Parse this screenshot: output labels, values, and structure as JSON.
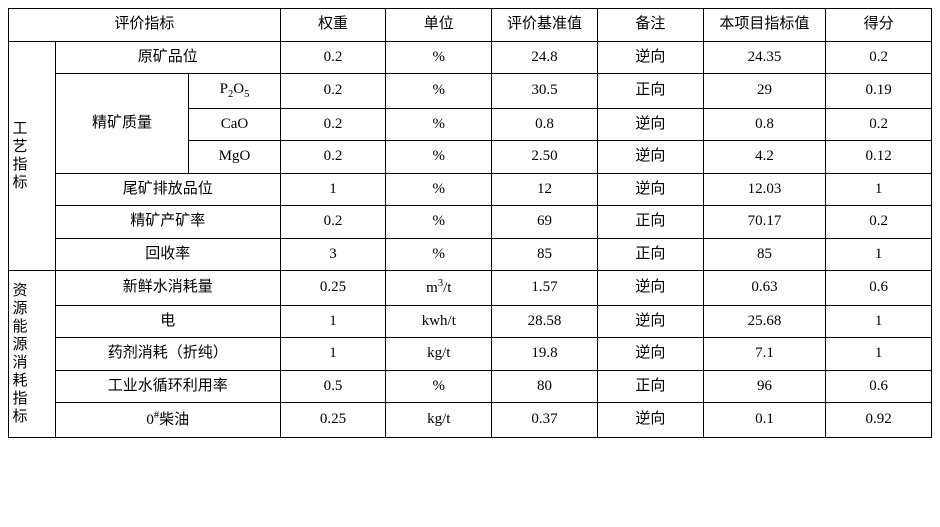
{
  "headers": {
    "indicator": "评价指标",
    "weight": "权重",
    "unit": "单位",
    "baseline": "评价基准值",
    "note": "备注",
    "projectValue": "本项目指标值",
    "score": "得分"
  },
  "categories": {
    "process": "工艺指标",
    "resource": "资源能源消耗指标"
  },
  "subLabels": {
    "oreGrade": "原矿品位",
    "concQuality": "精矿质量",
    "p2o5": "P",
    "p2o5_sub": "2",
    "p2o5_after": "O",
    "p2o5_sub2": "5",
    "cao": "CaO",
    "mgo": "MgO",
    "tailingsGrade": "尾矿排放品位",
    "concYield": "精矿产矿率",
    "recovery": "回收率",
    "freshWater": "新鲜水消耗量",
    "electricity": "电",
    "reagent": "药剂消耗（折纯）",
    "waterRecycle": "工业水循环利用率",
    "diesel_pre": "0",
    "diesel_sup": "#",
    "diesel_post": "柴油"
  },
  "units": {
    "pct": "%",
    "m3t_pre": "m",
    "m3t_sup": "3",
    "m3t_post": "/t",
    "kwht": "kwh/t",
    "kgt": "kg/t"
  },
  "notes": {
    "reverse": "逆向",
    "forward": "正向"
  },
  "rows": {
    "oreGrade": {
      "weight": "0.2",
      "baseline": "24.8",
      "proj": "24.35",
      "score": "0.2"
    },
    "p2o5": {
      "weight": "0.2",
      "baseline": "30.5",
      "proj": "29",
      "score": "0.19"
    },
    "cao": {
      "weight": "0.2",
      "baseline": "0.8",
      "proj": "0.8",
      "score": "0.2"
    },
    "mgo": {
      "weight": "0.2",
      "baseline": "2.50",
      "proj": "4.2",
      "score": "0.12"
    },
    "tailings": {
      "weight": "1",
      "baseline": "12",
      "proj": "12.03",
      "score": "1"
    },
    "concYield": {
      "weight": "0.2",
      "baseline": "69",
      "proj": "70.17",
      "score": "0.2"
    },
    "recovery": {
      "weight": "3",
      "baseline": "85",
      "proj": "85",
      "score": "1"
    },
    "freshWater": {
      "weight": "0.25",
      "baseline": "1.57",
      "proj": "0.63",
      "score": "0.6"
    },
    "electricity": {
      "weight": "1",
      "baseline": "28.58",
      "proj": "25.68",
      "score": "1"
    },
    "reagent": {
      "weight": "1",
      "baseline": "19.8",
      "proj": "7.1",
      "score": "1"
    },
    "waterRecycle": {
      "weight": "0.5",
      "baseline": "80",
      "proj": "96",
      "score": "0.6"
    },
    "diesel": {
      "weight": "0.25",
      "baseline": "0.37",
      "proj": "0.1",
      "score": "0.92"
    }
  }
}
